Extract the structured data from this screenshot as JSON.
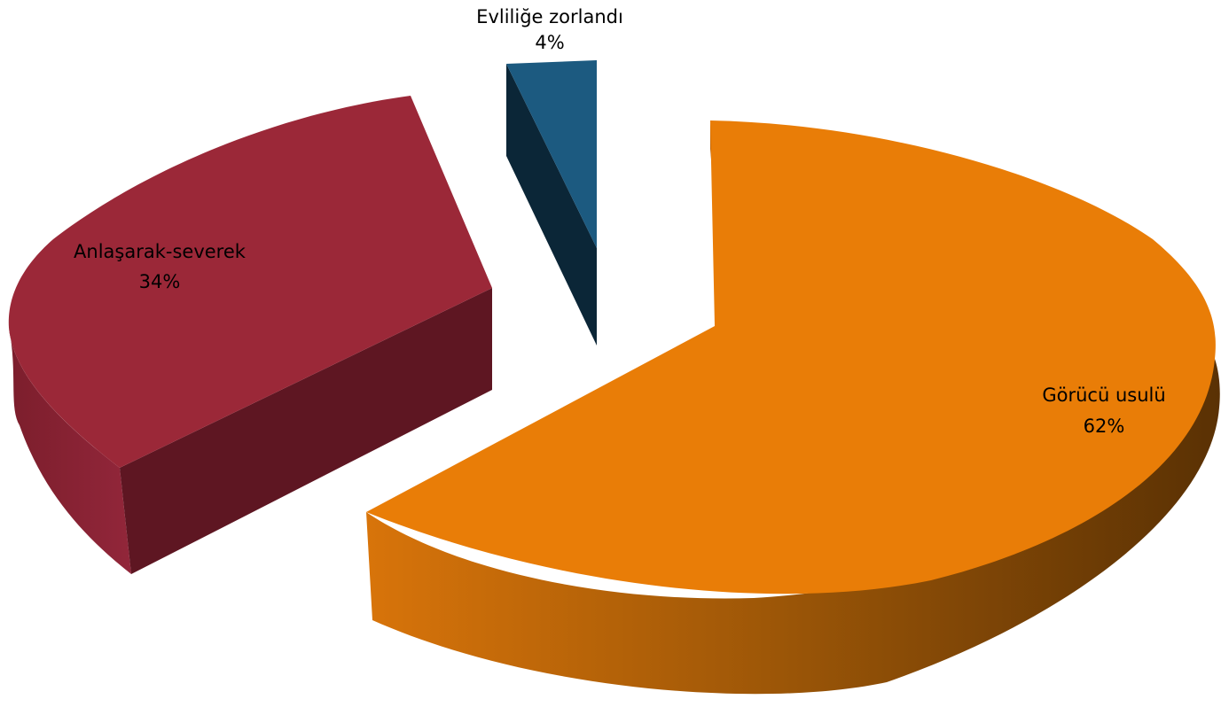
{
  "chart_data": {
    "type": "pie",
    "style": "3d-exploded",
    "slices": [
      {
        "label": "Görücü usulü",
        "value": 62,
        "value_label": "62%",
        "color": "#e97d07",
        "side_color_light": "#c8680a",
        "side_color_dark": "#5e3305"
      },
      {
        "label": "Anlaşarak-severek",
        "value": 34,
        "value_label": "34%",
        "color": "#9b2838",
        "side_color_light": "#8a2333",
        "side_color_dark": "#5e1622"
      },
      {
        "label": "Evliliğe zorlandı",
        "value": 4,
        "value_label": "4%",
        "color": "#1c5a80",
        "side_color_light": "#164a6a",
        "side_color_dark": "#0b2637"
      }
    ],
    "legend": "none",
    "title": ""
  }
}
